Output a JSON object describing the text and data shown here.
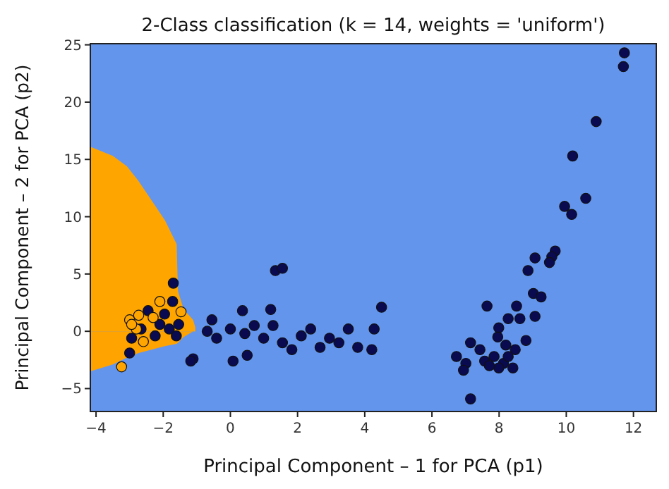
{
  "chart_data": {
    "type": "scatter",
    "title": "2-Class classification (k = 14, weights = 'uniform')",
    "xlabel": "Principal Component – 1 for PCA (p1)",
    "ylabel": "Principal Component – 2 for PCA (p2)",
    "xlim": [
      -4.17,
      12.68
    ],
    "ylim": [
      -7,
      25.1
    ],
    "xticks": [
      {
        "value": -4,
        "label": "−4"
      },
      {
        "value": -2,
        "label": "−2"
      },
      0,
      2,
      4,
      6,
      8,
      10,
      12
    ],
    "yticks": [
      {
        "value": -5,
        "label": "−5"
      },
      0,
      5,
      10,
      15,
      20,
      25
    ],
    "grid": false,
    "marker": "circle",
    "bands": [
      {
        "axis": "x",
        "from": -4.17,
        "to": 12.68,
        "color": "#6495ed"
      }
    ],
    "series": [
      {
        "type": "area",
        "marker": "none",
        "color": "#ffa500",
        "x": [
          -4.17,
          -3.5,
          -3.08,
          -2.73,
          -1.95,
          -1.6,
          -1.56,
          -1.39,
          -1.11,
          -1.05
        ],
        "values": [
          16.1,
          15.3,
          14.4,
          13.1,
          9.7,
          7.6,
          3.5,
          1.9,
          1.0,
          0.4
        ]
      },
      {
        "type": "area",
        "marker": "none",
        "color": "#ffa300",
        "x": [
          -4.17,
          -3.5,
          -3.08,
          -2.73,
          -1.95,
          -1.6,
          -1.56,
          -1.39,
          -1.11,
          -1.05
        ],
        "values": [
          -3.5,
          -2.9,
          -2.3,
          -1.9,
          -1.3,
          -1.1,
          -1.0,
          -0.5,
          0.0,
          0.4
        ]
      },
      {
        "color": "#0a0a50",
        "x": [
          11.73,
          11.7,
          10.89,
          10.19,
          10.58,
          9.95,
          10.16,
          9.67,
          9.57,
          9.5,
          9.07,
          8.86,
          9.02,
          9.25,
          9.07,
          8.52,
          7.64,
          8.62,
          8.27,
          7.99,
          7.96,
          8.2,
          8.8,
          8.48,
          7.15,
          7.43,
          6.73,
          7.01,
          6.94,
          7.57,
          7.85,
          8.13,
          8.41,
          7.99,
          7.15,
          7.71,
          8.27,
          1.34,
          1.55,
          4.5,
          1.2,
          0.36,
          -0.55,
          -0.69,
          -0.41,
          0.0,
          0.43,
          0.99,
          1.55,
          2.11,
          2.39,
          2.95,
          3.51,
          3.79,
          4.21,
          4.28,
          2.67,
          1.83,
          0.08,
          0.5,
          -1.11,
          -1.18,
          1.27,
          3.23,
          0.71,
          -1.7,
          -1.72,
          -2.45,
          -2.1,
          -2.66,
          -1.82,
          -1.54,
          -2.24,
          -2.94,
          -3.0,
          -1.96,
          -1.61
        ],
        "values": [
          24.3,
          23.1,
          18.3,
          15.3,
          11.6,
          10.9,
          10.2,
          7.0,
          6.5,
          6.0,
          6.4,
          5.3,
          3.3,
          3.0,
          1.3,
          2.2,
          2.2,
          1.1,
          1.1,
          0.3,
          -0.5,
          -1.2,
          -0.8,
          -1.6,
          -1.0,
          -1.6,
          -2.2,
          -2.8,
          -3.4,
          -2.6,
          -2.2,
          -2.8,
          -3.2,
          -3.2,
          -5.9,
          -3.0,
          -2.2,
          5.3,
          5.5,
          2.1,
          1.9,
          1.8,
          1.0,
          0.0,
          -0.6,
          0.2,
          -0.2,
          -0.6,
          -1.0,
          -0.4,
          0.2,
          -0.6,
          0.2,
          -1.4,
          -1.6,
          0.2,
          -1.4,
          -1.6,
          -2.6,
          -2.1,
          -2.4,
          -2.6,
          0.5,
          -1.0,
          0.5,
          4.2,
          2.6,
          1.8,
          0.6,
          0.2,
          0.2,
          0.6,
          -0.4,
          -0.6,
          -1.9,
          1.5,
          -0.4
        ]
      },
      {
        "color": "#ffa500",
        "x": [
          -3.24,
          -2.1,
          -3.0,
          -2.73,
          -2.8,
          -2.59,
          -2.94,
          -1.47,
          -2.3
        ],
        "values": [
          -3.1,
          2.6,
          1.0,
          1.4,
          0.2,
          -0.9,
          0.6,
          1.7,
          1.2
        ]
      }
    ]
  }
}
